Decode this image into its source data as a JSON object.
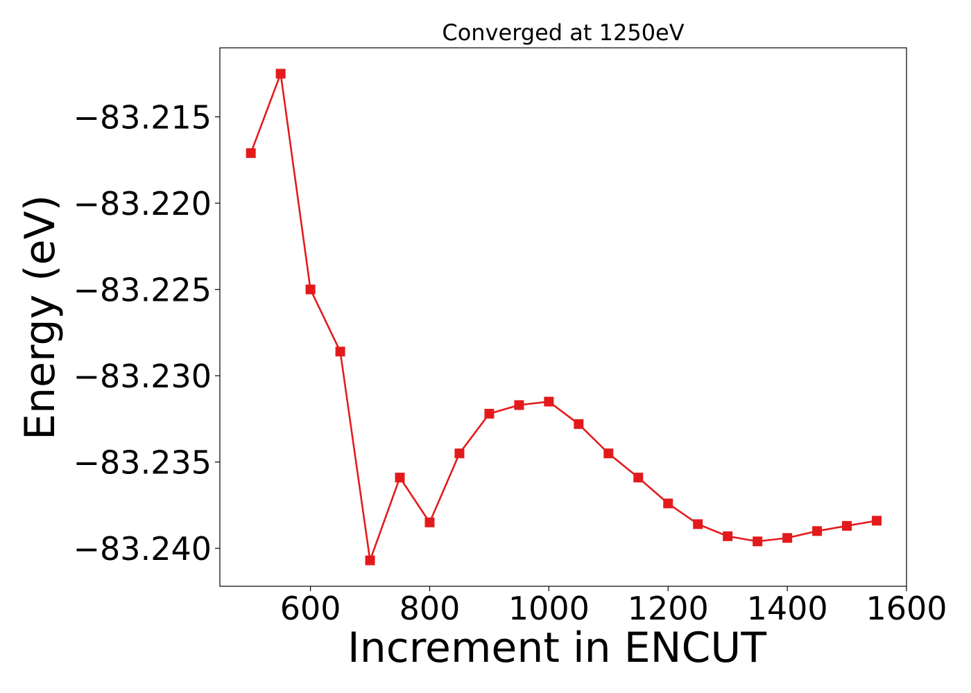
{
  "chart_data": {
    "type": "line",
    "title": "Converged at 1250eV",
    "xlabel": "Increment in ENCUT",
    "ylabel": "Energy (eV)",
    "xlim": [
      448,
      1600
    ],
    "ylim": [
      -83.2422,
      -83.211
    ],
    "xticks": [
      600,
      800,
      1000,
      1200,
      1400,
      1600
    ],
    "yticks": [
      -83.215,
      -83.22,
      -83.225,
      -83.23,
      -83.235,
      -83.24
    ],
    "ytick_labels": [
      "−83.215",
      "−83.220",
      "−83.225",
      "−83.230",
      "−83.235",
      "−83.240"
    ],
    "grid": false,
    "series": [
      {
        "color": "#e31a1c",
        "marker": "square",
        "x": [
          500,
          550,
          600,
          650,
          700,
          750,
          800,
          850,
          900,
          950,
          1000,
          1050,
          1100,
          1150,
          1200,
          1250,
          1300,
          1350,
          1400,
          1450,
          1500,
          1550
        ],
        "y": [
          -83.2171,
          -83.2125,
          -83.225,
          -83.2286,
          -83.2407,
          -83.2359,
          -83.2385,
          -83.2345,
          -83.2322,
          -83.2317,
          -83.2315,
          -83.2328,
          -83.2345,
          -83.2359,
          -83.2374,
          -83.2386,
          -83.2393,
          -83.2396,
          -83.2394,
          -83.239,
          -83.2387,
          -83.2384
        ]
      }
    ]
  }
}
